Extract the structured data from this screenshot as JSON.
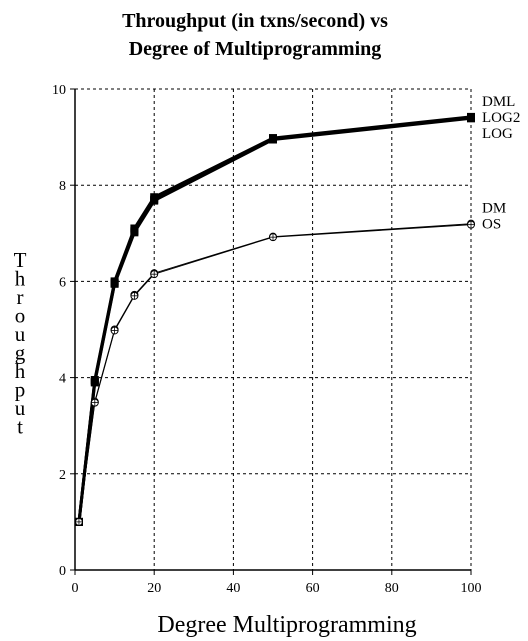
{
  "chart_data": {
    "type": "line",
    "title_lines": [
      "Throughput (in txns/second) vs",
      "Degree of Multiprogramming"
    ],
    "xlabel": "Degree Multiprogramming",
    "ylabel": "Throughput",
    "xlim": [
      0,
      100
    ],
    "ylim": [
      0,
      10
    ],
    "x_ticks": [
      "0",
      "20",
      "40",
      "60",
      "80",
      "100"
    ],
    "y_ticks": [
      "0",
      "2",
      "4",
      "6",
      "8",
      "10"
    ],
    "grid": true,
    "x": [
      1,
      5,
      10,
      15,
      20,
      50,
      100
    ],
    "series": [
      {
        "name": "DML",
        "values": [
          1.0,
          3.95,
          6.0,
          7.1,
          7.75,
          8.98,
          9.42
        ],
        "style": "thick",
        "marker": "square"
      },
      {
        "name": "LOG2",
        "values": [
          1.0,
          3.92,
          5.97,
          7.05,
          7.7,
          8.96,
          9.4
        ],
        "style": "thick",
        "marker": "square"
      },
      {
        "name": "LOG",
        "values": [
          1.0,
          3.9,
          5.95,
          7.02,
          7.68,
          8.95,
          9.39
        ],
        "style": "thick",
        "marker": "square"
      },
      {
        "name": "DM",
        "values": [
          1.0,
          3.5,
          5.0,
          5.72,
          6.17,
          6.93,
          7.2
        ],
        "style": "thin",
        "marker": "circle"
      },
      {
        "name": "OS",
        "values": [
          1.0,
          3.48,
          4.98,
          5.7,
          6.15,
          6.92,
          7.18
        ],
        "style": "thin",
        "marker": "circle"
      }
    ],
    "series_label_groups": [
      [
        "DML",
        "LOG2",
        "LOG"
      ],
      [
        "DM",
        "OS"
      ]
    ]
  }
}
